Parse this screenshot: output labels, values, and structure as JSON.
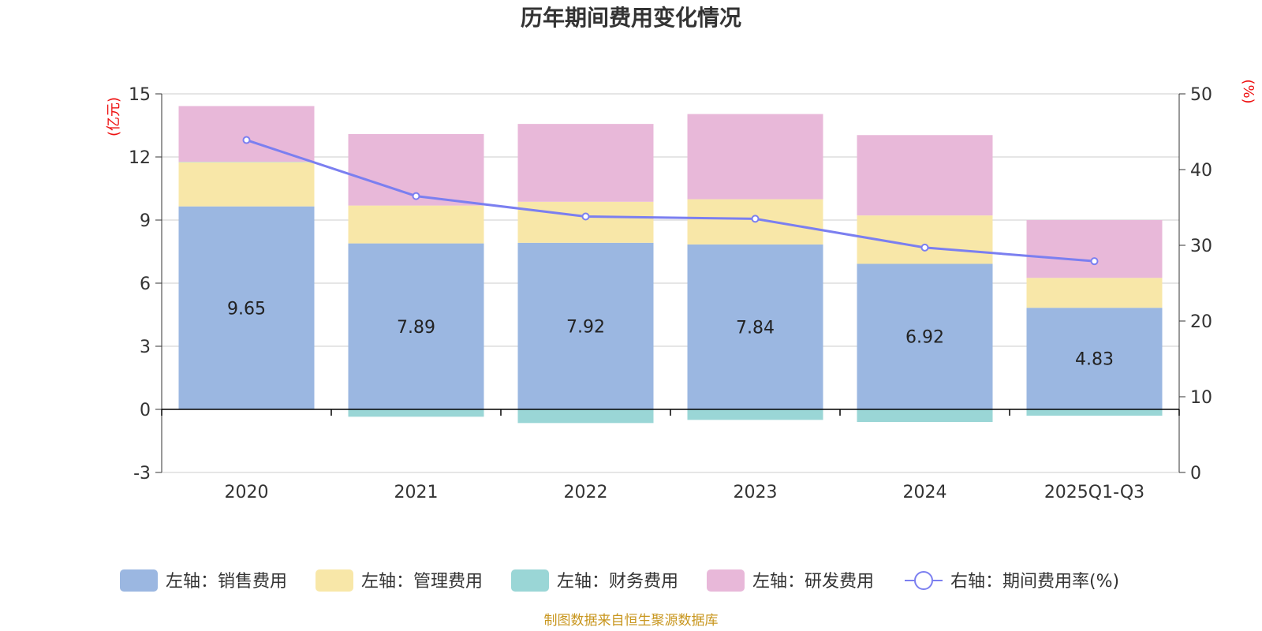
{
  "chart_data": {
    "type": "bar",
    "stacked": true,
    "title": "历年期间费用变化情况",
    "categories": [
      "2020",
      "2021",
      "2022",
      "2023",
      "2024",
      "2025Q1-Q3"
    ],
    "left_axis": {
      "unit": "(亿元)",
      "min": -3,
      "max": 15,
      "ticks": [
        -3,
        0,
        3,
        6,
        9,
        12,
        15
      ]
    },
    "right_axis": {
      "unit": "(%)",
      "min": 0,
      "max": 50,
      "ticks": [
        0,
        10,
        20,
        30,
        40,
        50
      ]
    },
    "series": [
      {
        "name": "左轴：销售费用",
        "axis": "left",
        "type": "bar",
        "color": "#9bb7e1",
        "values": [
          9.65,
          7.89,
          7.92,
          7.84,
          6.92,
          4.83
        ],
        "show_labels": true
      },
      {
        "name": "左轴：管理费用",
        "axis": "left",
        "type": "bar",
        "color": "#f8e7a8",
        "values": [
          2.1,
          1.8,
          1.95,
          2.15,
          2.3,
          1.42
        ]
      },
      {
        "name": "左轴：财务费用",
        "axis": "left",
        "type": "bar",
        "color": "#9ad6d6",
        "values": [
          0.02,
          -0.35,
          -0.65,
          -0.5,
          -0.6,
          -0.3
        ]
      },
      {
        "name": "左轴：研发费用",
        "axis": "left",
        "type": "bar",
        "color": "#e8b8d9",
        "values": [
          2.65,
          3.4,
          3.7,
          4.05,
          3.82,
          2.75
        ]
      },
      {
        "name": "右轴：期间费用率(%)",
        "axis": "right",
        "type": "line",
        "color": "#7b7ff0",
        "values": [
          43.9,
          36.5,
          33.8,
          33.5,
          29.7,
          27.9
        ]
      }
    ],
    "legend": "bottom",
    "grid": true
  },
  "source_note": "制图数据来自恒生聚源数据库"
}
